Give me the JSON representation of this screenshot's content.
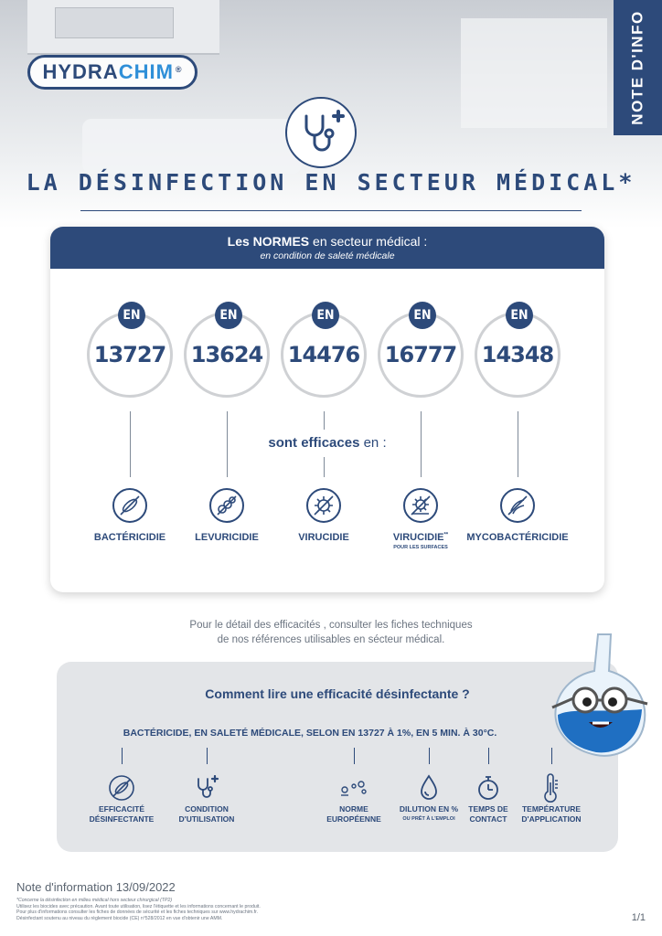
{
  "brand": {
    "name_part1": "HYDRA",
    "name_part2": "CHIM",
    "reg_mark": "®",
    "color_dark": "#2d4a7a",
    "color_light": "#2f8fd8"
  },
  "side_tab": "NOTE D'INFO",
  "title": "LA DÉSINFECTION EN SECTEUR MÉDICAL*",
  "card": {
    "header_bold": "Les NORMES",
    "header_rest": " en secteur médical :",
    "header_sub": "en condition de saleté médicale",
    "badge": "EN",
    "norms": [
      "13727",
      "13624",
      "14476",
      "16777",
      "14348"
    ],
    "effic_bold": "sont efficaces",
    "effic_rest": " en :",
    "efficacies": [
      {
        "label": "BACTÉRICIDIE",
        "sup": "",
        "sub": "",
        "icon": "bacteria-icon"
      },
      {
        "label": "LEVURICIDIE",
        "sup": "",
        "sub": "",
        "icon": "yeast-icon"
      },
      {
        "label": "VIRUCIDIE",
        "sup": "",
        "sub": "",
        "icon": "virus-icon"
      },
      {
        "label": "VIRUCIDIE",
        "sup": "**",
        "sub": "POUR LES SURFACES",
        "icon": "virus-surface-icon"
      },
      {
        "label": "MYCOBACTÉRICIDIE",
        "sup": "",
        "sub": "",
        "icon": "mycobacteria-icon"
      }
    ]
  },
  "detail": {
    "line1": "Pour le détail des efficacités , consulter les fiches techniques",
    "line2": "de nos références utilisables en sécteur médical."
  },
  "how": {
    "title": "Comment lire une efficacité désinfectante ?",
    "sentence": "BACTÉRICIDE, EN SALETÉ MÉDICALE, SELON EN 13727 À 1%, EN 5 MIN. À 30°C.",
    "items": [
      {
        "line1": "EFFICACITÉ",
        "line2": "DÉSINFECTANTE",
        "sub": ""
      },
      {
        "line1": "CONDITION",
        "line2": "D'UTILISATION",
        "sub": ""
      },
      {
        "line1": "NORME",
        "line2": "EUROPÉENNE",
        "sub": ""
      },
      {
        "line1": "DILUTION EN %",
        "line2": "",
        "sub": "OU PRÊT À L'EMPLOI"
      },
      {
        "line1": "TEMPS DE",
        "line2": "CONTACT",
        "sub": ""
      },
      {
        "line1": "TEMPÉRATURE",
        "line2": "D'APPLICATION",
        "sub": ""
      }
    ]
  },
  "footer": {
    "title": "Note d'information 13/09/2022",
    "notes": [
      "*Concerne la désinfection en milieu médical hors secteur chirurgical (TP2)",
      "Utilisez les biocides avec précaution. Avant toute utilisation, lisez l'étiquette et les informations concernant le produit.",
      "Pour plus d'informations consulter les fiches de données de sécurité et les fiches techniques sur www.hydrachim.fr.",
      "Désinfectant soutenu au niveau du règlement biocide (CE) n°528/2012 en vue d'obtenir une AMM."
    ],
    "page": "1/1"
  }
}
